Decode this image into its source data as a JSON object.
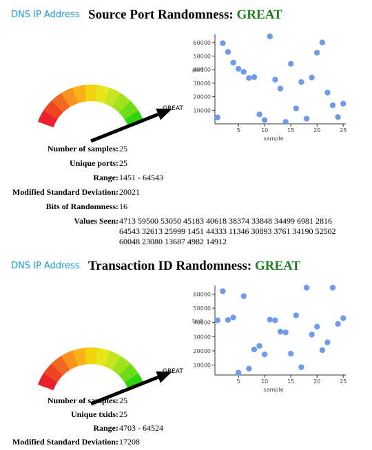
{
  "sections": [
    {
      "link_label": "DNS IP Address",
      "title_prefix": "Source Port Randomness:",
      "status": "GREAT",
      "status_color": "#1e7d1e",
      "gauge_label": "GREAT",
      "stats": [
        {
          "label": "Number of samples:",
          "value": "25"
        },
        {
          "label": "Unique ports:",
          "value": "25"
        },
        {
          "label": "Range:",
          "value": "1451 - 64543"
        },
        {
          "label": "Modified Standard Deviation:",
          "value": "20021"
        },
        {
          "label": "Bits of Randomness:",
          "value": "16"
        },
        {
          "label": "Values Seen:",
          "value": "4713 59500 53050 45183 40618 38374 33848 34499 6981 2816 64543 32613 25999 1451 44333 11346 30893 3761 34190 52502 60048 23080 13687 4982 14912"
        }
      ]
    },
    {
      "link_label": "DNS IP Address",
      "title_prefix": "Transaction ID Randomness:",
      "status": "GREAT",
      "status_color": "#1e7d1e",
      "gauge_label": "GREAT",
      "stats": [
        {
          "label": "Number of samples:",
          "value": "25"
        },
        {
          "label": "Unique txids:",
          "value": "25"
        },
        {
          "label": "Range:",
          "value": "4703 - 64524"
        },
        {
          "label": "Modified Standard Deviation:",
          "value": "17208"
        }
      ]
    }
  ],
  "gauge_colors": [
    "#e8212b",
    "#ee4424",
    "#f26722",
    "#f7931e",
    "#f8b318",
    "#f4d30e",
    "#e5e71a",
    "#c6e51e",
    "#a2e11f",
    "#6fdc1a",
    "#2ed510"
  ],
  "gauge_level": 1.0,
  "chart_data": [
    {
      "type": "scatter",
      "title": "",
      "xlabel": "sample",
      "ylabel": "port",
      "xlim": [
        0.5,
        25.5
      ],
      "ylim": [
        0,
        66000
      ],
      "xticks": [
        5,
        10,
        15,
        20,
        25
      ],
      "yticks": [
        10000,
        20000,
        30000,
        40000,
        50000,
        60000
      ],
      "point_color": "#6f9be8",
      "x": [
        1,
        2,
        3,
        4,
        5,
        6,
        7,
        8,
        9,
        10,
        11,
        12,
        13,
        14,
        15,
        16,
        17,
        18,
        19,
        20,
        21,
        22,
        23,
        24,
        25
      ],
      "y": [
        4713,
        59500,
        53050,
        45183,
        40618,
        38374,
        33848,
        34499,
        6981,
        2816,
        64543,
        32613,
        25999,
        1451,
        44333,
        11346,
        30893,
        3761,
        34190,
        52502,
        60048,
        23080,
        13687,
        4982,
        14912
      ]
    },
    {
      "type": "scatter",
      "title": "",
      "xlabel": "sample",
      "ylabel": "txid",
      "xlim": [
        0.5,
        25.5
      ],
      "ylim": [
        3000,
        66000
      ],
      "xticks": [
        5,
        10,
        15,
        20,
        25
      ],
      "yticks": [
        10000,
        20000,
        30000,
        40000,
        50000,
        60000
      ],
      "point_color": "#6f9be8",
      "x": [
        1,
        2,
        3,
        4,
        5,
        6,
        7,
        8,
        9,
        10,
        11,
        12,
        13,
        14,
        15,
        16,
        17,
        18,
        19,
        20,
        21,
        22,
        23,
        24,
        25
      ],
      "y": [
        41500,
        62000,
        41800,
        43500,
        4700,
        58500,
        7500,
        21000,
        23500,
        17500,
        42000,
        41500,
        33500,
        33000,
        18000,
        45000,
        8500,
        64500,
        31500,
        37000,
        20500,
        26000,
        64500,
        39000,
        43000
      ]
    }
  ]
}
